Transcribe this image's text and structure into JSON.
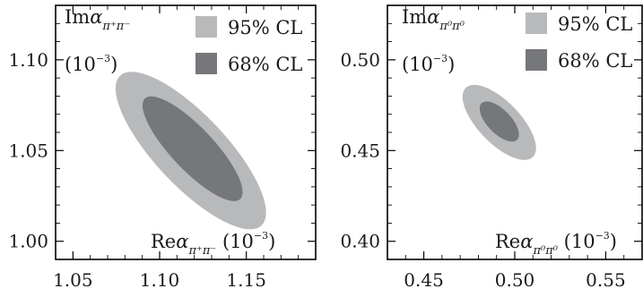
{
  "chart_data": [
    {
      "type": "contour",
      "xlim": [
        1.04,
        1.19
      ],
      "ylim": [
        0.99,
        1.13
      ],
      "xticks": [
        1.05,
        1.1,
        1.15
      ],
      "yticks": [
        1.0,
        1.05,
        1.1
      ],
      "xtick_labels": [
        "1.05",
        "1.10",
        "1.15"
      ],
      "ytick_labels": [
        "1.00",
        "1.05",
        "1.10"
      ],
      "ylabel": {
        "prefix": "Im",
        "symbol": "α",
        "subscript": "π⁺π⁻",
        "unit": "(10⁻³)",
        "unit_base": "(10",
        "unit_exp": "−3",
        "unit_close": ")"
      },
      "xlabel": {
        "prefix": "Re",
        "symbol": "α",
        "subscript": "π⁺π⁻",
        "unit": "(10⁻³)",
        "unit_base": "(10",
        "unit_exp": "−3",
        "unit_close": ")"
      },
      "legend": {
        "placement": "top-right",
        "entries": [
          "95% CL",
          "68% CL"
        ]
      },
      "series": [
        {
          "name": "95% CL",
          "color": "#b8b9bb",
          "center": [
            1.118,
            1.05
          ],
          "semi_axes": [
            0.058,
            0.02
          ],
          "angle_deg": -45
        },
        {
          "name": "68% CL",
          "color": "#76777a",
          "center": [
            1.119,
            1.051
          ],
          "semi_axes": [
            0.039,
            0.012
          ],
          "angle_deg": -45
        }
      ]
    },
    {
      "type": "contour",
      "xlim": [
        0.43,
        0.57
      ],
      "ylim": [
        0.39,
        0.53
      ],
      "xticks": [
        0.45,
        0.5,
        0.55
      ],
      "yticks": [
        0.4,
        0.45,
        0.5
      ],
      "xtick_labels": [
        "0.45",
        "0.50",
        "0.55"
      ],
      "ytick_labels": [
        "0.40",
        "0.45",
        "0.50"
      ],
      "ylabel": {
        "prefix": "Im",
        "symbol": "α",
        "subscript": "π⁰π⁰",
        "unit": "(10⁻³)",
        "unit_base": "(10",
        "unit_exp": "−3",
        "unit_close": ")"
      },
      "xlabel": {
        "prefix": "Re",
        "symbol": "α",
        "subscript": "π⁰π⁰",
        "unit": "(10⁻³)",
        "unit_base": "(10",
        "unit_exp": "−3",
        "unit_close": ")"
      },
      "legend": {
        "placement": "top-right",
        "entries": [
          "95% CL",
          "68% CL"
        ]
      },
      "series": [
        {
          "name": "95% CL",
          "color": "#b8b9bb",
          "center": [
            0.4915,
            0.4655
          ],
          "semi_axes": [
            0.0265,
            0.0115
          ],
          "angle_deg": -46
        },
        {
          "name": "68% CL",
          "color": "#76777a",
          "center": [
            0.4915,
            0.466
          ],
          "semi_axes": [
            0.014,
            0.0065
          ],
          "angle_deg": -46
        }
      ]
    }
  ]
}
